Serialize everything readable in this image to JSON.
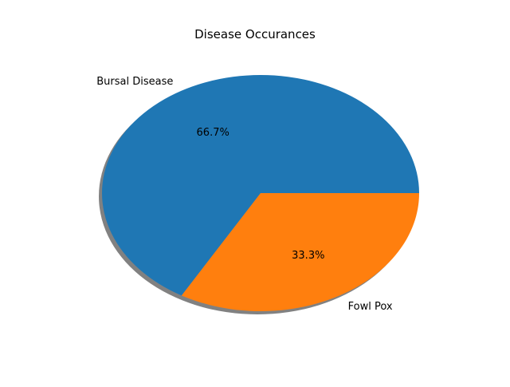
{
  "chart_data": {
    "type": "pie",
    "title": "Disease Occurances",
    "labels": [
      "Bursal Disease",
      "Fowl Pox"
    ],
    "values": [
      66.7,
      33.3
    ],
    "pct_labels": [
      "66.7%",
      "33.3%"
    ],
    "colors": [
      "#1f77b4",
      "#ff7f0e"
    ],
    "shadow": true,
    "start_angle_deg": 0,
    "direction": "counterclockwise"
  }
}
